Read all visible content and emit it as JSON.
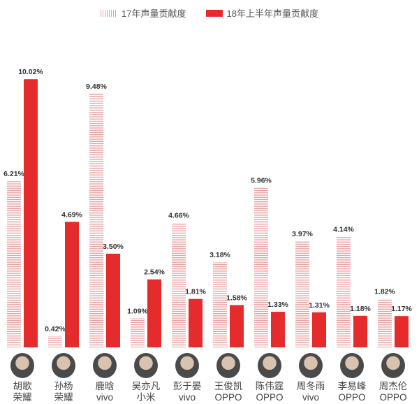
{
  "chart_data": {
    "type": "bar",
    "title": "",
    "xlabel": "",
    "ylabel": "",
    "ylim": [
      0,
      10.5
    ],
    "grid": false,
    "legend_placement": "top",
    "categories": [
      {
        "name": "胡歌",
        "brand": "荣耀"
      },
      {
        "name": "孙杨",
        "brand": "荣耀"
      },
      {
        "name": "鹿晗",
        "brand": "vivo"
      },
      {
        "name": "吴亦凡",
        "brand": "小米"
      },
      {
        "name": "彭于晏",
        "brand": "vivo"
      },
      {
        "name": "王俊凯",
        "brand": "OPPO"
      },
      {
        "name": "陈伟霆",
        "brand": "OPPO"
      },
      {
        "name": "周冬雨",
        "brand": "vivo"
      },
      {
        "name": "李易峰",
        "brand": "OPPO"
      },
      {
        "name": "周杰伦",
        "brand": "OPPO"
      }
    ],
    "series": [
      {
        "name": "17年声量贡献度",
        "color": "#e9a0a0",
        "pattern": "striped",
        "values": [
          6.21,
          0.42,
          9.48,
          1.09,
          4.66,
          3.18,
          5.96,
          3.97,
          4.14,
          1.82
        ],
        "labels": [
          "6.21%",
          "0.42%",
          "9.48%",
          "1.09%",
          "4.66%",
          "3.18%",
          "5.96%",
          "3.97%",
          "4.14%",
          "1.82%"
        ]
      },
      {
        "name": "18年上半年声量贡献度",
        "color": "#e52b2b",
        "pattern": "solid",
        "values": [
          10.02,
          4.69,
          3.5,
          2.54,
          1.81,
          1.58,
          1.33,
          1.31,
          1.18,
          1.17
        ],
        "labels": [
          "10.02%",
          "4.69%",
          "3.50%",
          "2.54%",
          "1.81%",
          "1.58%",
          "1.33%",
          "1.31%",
          "1.18%",
          "1.17%"
        ]
      }
    ]
  }
}
